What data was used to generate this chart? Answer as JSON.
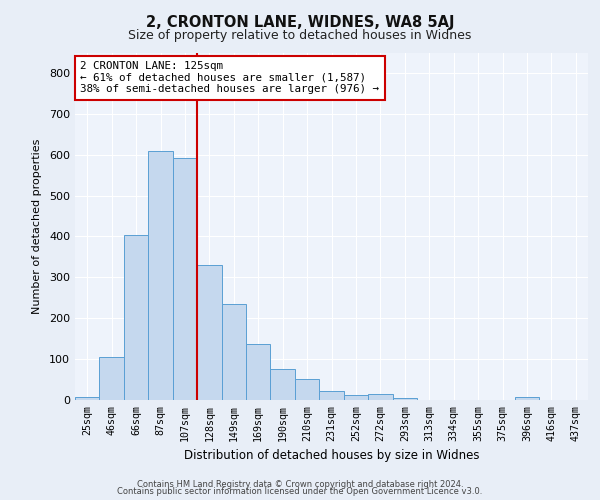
{
  "title": "2, CRONTON LANE, WIDNES, WA8 5AJ",
  "subtitle": "Size of property relative to detached houses in Widnes",
  "xlabel": "Distribution of detached houses by size in Widnes",
  "ylabel": "Number of detached properties",
  "bar_labels": [
    "25sqm",
    "46sqm",
    "66sqm",
    "87sqm",
    "107sqm",
    "128sqm",
    "149sqm",
    "169sqm",
    "190sqm",
    "210sqm",
    "231sqm",
    "252sqm",
    "272sqm",
    "293sqm",
    "313sqm",
    "334sqm",
    "355sqm",
    "375sqm",
    "396sqm",
    "416sqm",
    "437sqm"
  ],
  "bar_values": [
    7,
    106,
    403,
    609,
    591,
    329,
    236,
    136,
    77,
    51,
    22,
    12,
    15,
    5,
    0,
    0,
    0,
    0,
    8,
    0,
    0
  ],
  "bar_color": "#c5d8ee",
  "bar_edge_color": "#5a9fd4",
  "vline_x_index": 4.5,
  "vline_color": "#cc0000",
  "annotation_text": "2 CRONTON LANE: 125sqm\n← 61% of detached houses are smaller (1,587)\n38% of semi-detached houses are larger (976) →",
  "annotation_box_facecolor": "#ffffff",
  "annotation_box_edgecolor": "#cc0000",
  "ylim": [
    0,
    850
  ],
  "yticks": [
    0,
    100,
    200,
    300,
    400,
    500,
    600,
    700,
    800
  ],
  "bg_color": "#e8eef7",
  "plot_bg_color": "#eef3fb",
  "grid_color": "#ffffff",
  "footer_line1": "Contains HM Land Registry data © Crown copyright and database right 2024.",
  "footer_line2": "Contains public sector information licensed under the Open Government Licence v3.0."
}
